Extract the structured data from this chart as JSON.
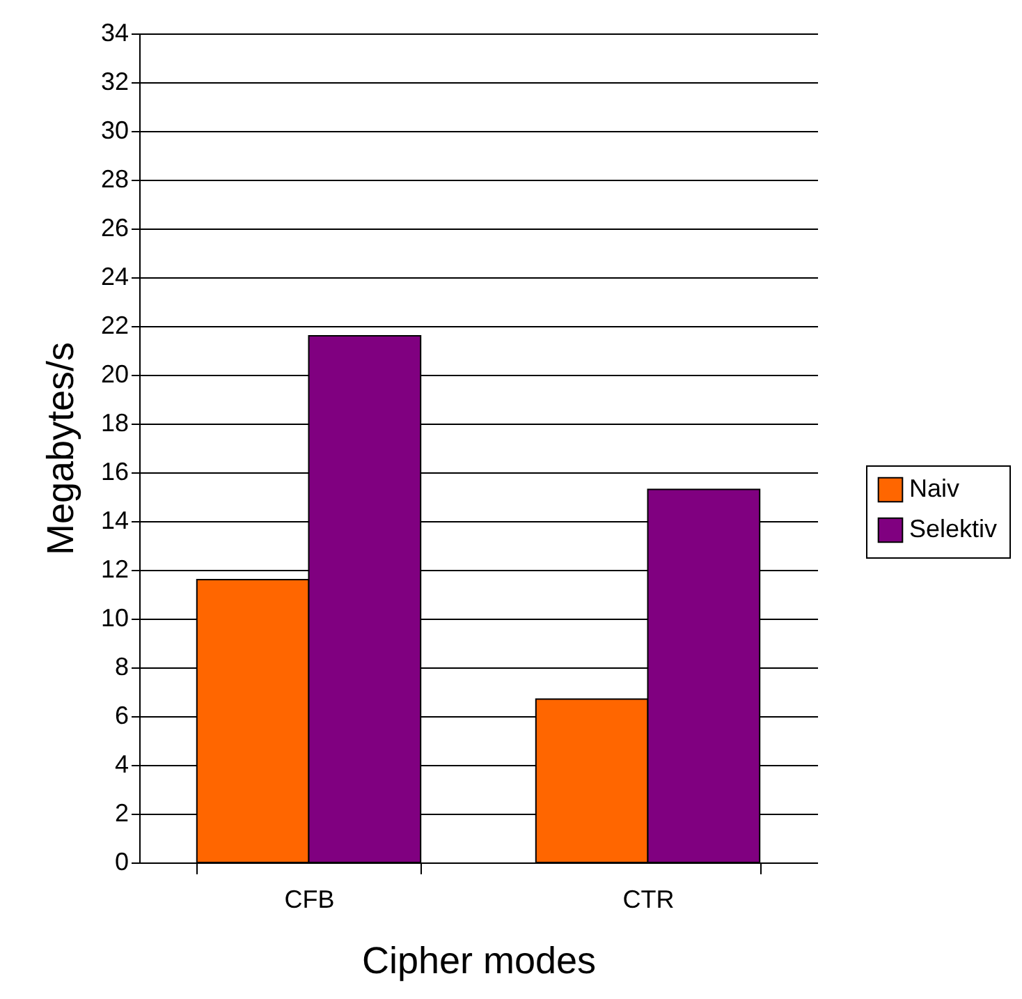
{
  "chart_data": {
    "type": "bar",
    "xlabel": "Cipher modes",
    "ylabel": "Megabytes/s",
    "categories": [
      "CFB",
      "CTR"
    ],
    "series": [
      {
        "name": "Naiv",
        "color": "#ff6600",
        "values": [
          11.6,
          6.7
        ]
      },
      {
        "name": "Selektiv",
        "color": "#800080",
        "values": [
          21.6,
          15.3
        ]
      }
    ],
    "ylim": [
      0,
      34
    ],
    "yticks": [
      0,
      2,
      4,
      6,
      8,
      10,
      12,
      14,
      16,
      18,
      20,
      22,
      24,
      26,
      28,
      30,
      32,
      34
    ],
    "grid": "y",
    "legend": "right"
  }
}
